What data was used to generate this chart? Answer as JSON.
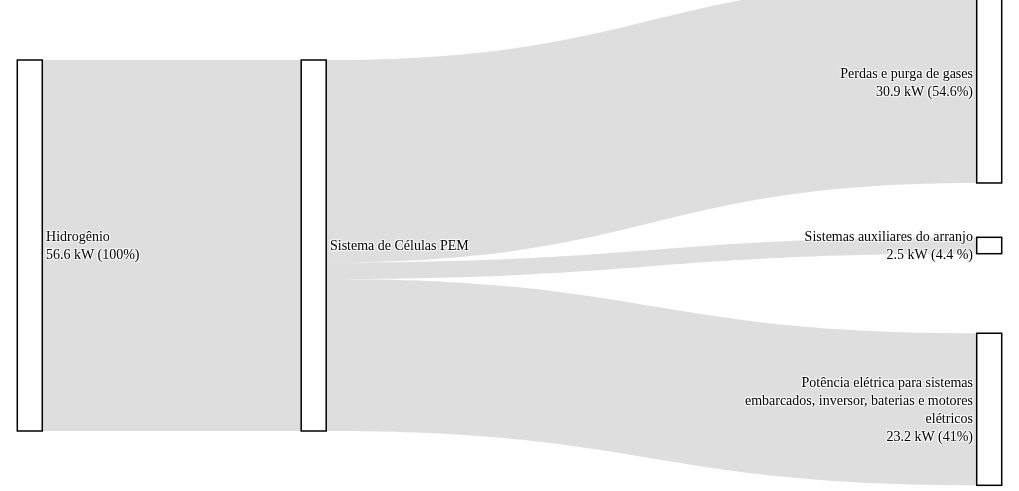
{
  "chart_data": {
    "type": "other",
    "categories": [
      "Hidrogênio",
      "Sistema de Células PEM",
      "Perdas e purga de gases",
      "Sistemas auxiliares do arranjo",
      "Potência elétrica para sistemas embarcados, inversor, baterias e motores elétricos"
    ],
    "values": [
      56.6,
      null,
      30.9,
      2.5,
      23.2
    ],
    "value_labels": [
      "56.6 kW (100%)",
      null,
      "30.9 kW (54.6%)",
      "2.5 kW (4.4 %)",
      "23.2 kW (41%)"
    ]
  }
}
